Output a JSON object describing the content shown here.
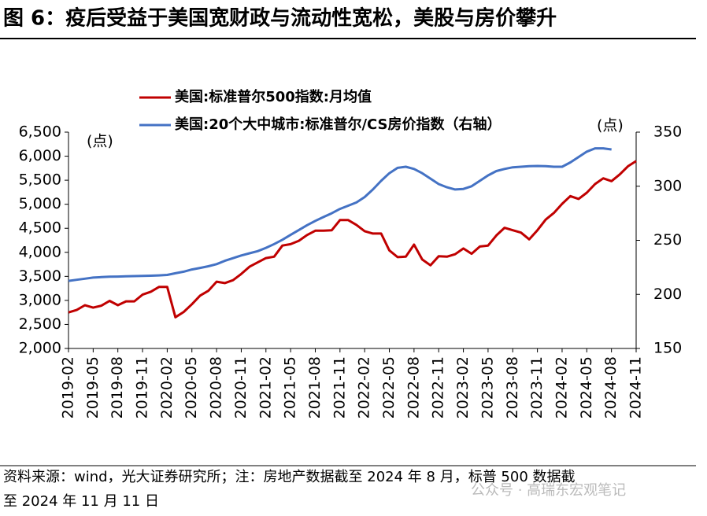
{
  "chart_data": {
    "type": "line",
    "title": "图 6：疫后受益于美国宽财政与流动性宽松，美股与房价攀升",
    "ylabel": "(点)",
    "y2label": "(点)",
    "footnote": [
      "资料来源：wind，光大证券研究所；注：房地产数据截至 2024 年 8 月，标普 500 数据截",
      "至 2024 年 11 月 11 日"
    ],
    "watermark": "公众号 · 高瑞东宏观笔记",
    "categories": [
      "2019-02",
      null,
      null,
      "2019-05",
      null,
      null,
      "2019-08",
      null,
      null,
      "2019-11",
      null,
      null,
      "2020-02",
      null,
      null,
      "2020-05",
      null,
      null,
      "2020-08",
      null,
      null,
      "2020-11",
      null,
      null,
      "2021-02",
      null,
      null,
      "2021-05",
      null,
      null,
      "2021-08",
      null,
      null,
      "2021-11",
      null,
      null,
      "2022-02",
      null,
      null,
      "2022-05",
      null,
      null,
      "2022-08",
      null,
      null,
      "2022-11",
      null,
      null,
      "2023-02",
      null,
      null,
      "2023-05",
      null,
      null,
      "2023-08",
      null,
      null,
      "2023-11",
      null,
      null,
      "2024-02",
      null,
      null,
      "2024-05",
      null,
      null,
      "2024-08",
      null,
      null,
      "2024-11"
    ],
    "series": [
      {
        "name": "美国:标准普尔500指数:月均值",
        "color": "#c00000",
        "values": [
          2750,
          2800,
          2900,
          2850,
          2890,
          2990,
          2900,
          2980,
          2980,
          3120,
          3180,
          3280,
          3280,
          2650,
          2760,
          2920,
          3100,
          3200,
          3390,
          3360,
          3420,
          3550,
          3700,
          3790,
          3880,
          3910,
          4140,
          4170,
          4240,
          4360,
          4450,
          4450,
          4460,
          4670,
          4670,
          4570,
          4440,
          4390,
          4390,
          4040,
          3900,
          3910,
          4160,
          3850,
          3730,
          3920,
          3910,
          3960,
          4080,
          3970,
          4120,
          4140,
          4350,
          4510,
          4460,
          4410,
          4270,
          4460,
          4680,
          4820,
          5010,
          5170,
          5110,
          5240,
          5420,
          5540,
          5480,
          5620,
          5790,
          5900
        ]
      },
      {
        "name": "美国:20个大中城市:标准普尔/CS房价指数（右轴）",
        "color": "#4472c4",
        "axis": "y2",
        "values": [
          212.5,
          213.5,
          214.5,
          215.5,
          216,
          216.3,
          216.5,
          216.7,
          216.9,
          217.1,
          217.3,
          217.6,
          218,
          219.5,
          221,
          223,
          224.5,
          226,
          228,
          231,
          233.5,
          236,
          238,
          240,
          243,
          246.5,
          250.5,
          255,
          259.5,
          264,
          268,
          271.5,
          275,
          279,
          282,
          285,
          290,
          297,
          305,
          312,
          317,
          318,
          316,
          312,
          307,
          302,
          299,
          297,
          297.5,
          300,
          305,
          310,
          314,
          316,
          317.5,
          318,
          318.5,
          318.7,
          318.6,
          318,
          318,
          322,
          327,
          332,
          335,
          335,
          334,
          null,
          null,
          null
        ]
      }
    ],
    "ylim": [
      2000,
      6500
    ],
    "yticks": [
      {
        "value": 2000,
        "label": "2,000"
      },
      {
        "value": 2500,
        "label": "2,500"
      },
      {
        "value": 3000,
        "label": "3,000"
      },
      {
        "value": 3500,
        "label": "3,500"
      },
      {
        "value": 4000,
        "label": "4,000"
      },
      {
        "value": 4500,
        "label": "4,500"
      },
      {
        "value": 5000,
        "label": "5,000"
      },
      {
        "value": 5500,
        "label": "5,500"
      },
      {
        "value": 6000,
        "label": "6,000"
      },
      {
        "value": 6500,
        "label": "6,500"
      }
    ],
    "y2lim": [
      150,
      350
    ],
    "y2ticks": [
      150,
      200,
      250,
      300,
      350
    ],
    "legend": "top"
  }
}
